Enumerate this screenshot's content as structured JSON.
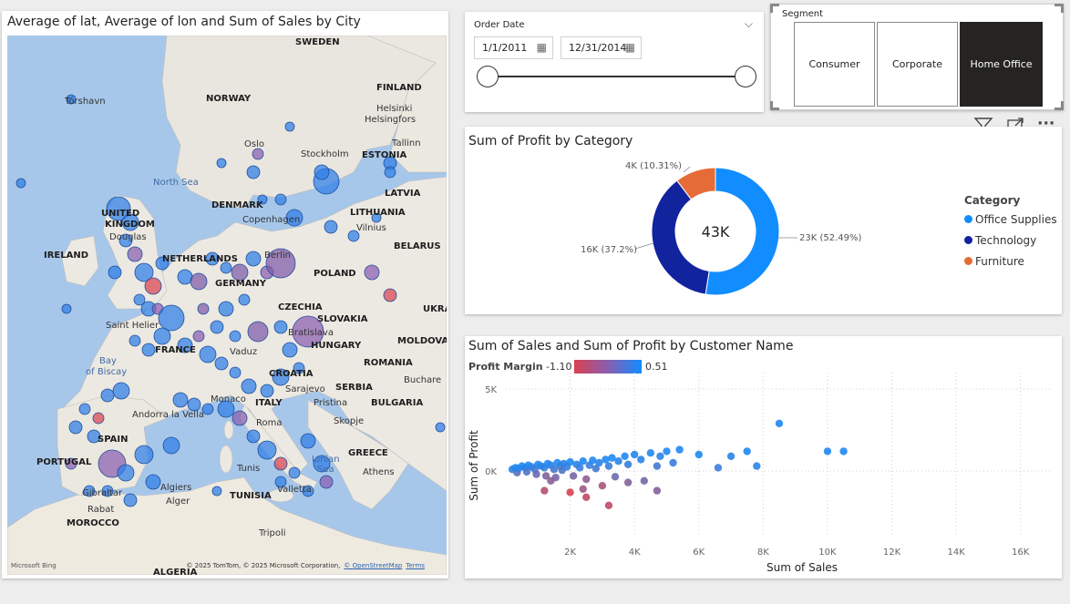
{
  "map": {
    "title": "Average of lat, Average of lon and Sum of Sales by City",
    "attribution": "© 2025 TomTom, © 2025 Microsoft Corporation,",
    "attribution_link": "© OpenStreetMap",
    "terms": "Terms",
    "logo": "Microsoft Bing",
    "labels": [
      {
        "name": "sweden",
        "text": "SWEDEN",
        "kind": "country"
      },
      {
        "name": "norway",
        "text": "NORWAY",
        "kind": "country"
      },
      {
        "name": "finland",
        "text": "FINLAND",
        "kind": "country"
      },
      {
        "name": "estonia",
        "text": "ESTONIA",
        "kind": "country"
      },
      {
        "name": "latvia",
        "text": "LATVIA",
        "kind": "country"
      },
      {
        "name": "lithuania",
        "text": "LITHUANIA",
        "kind": "country"
      },
      {
        "name": "denmark",
        "text": "DENMARK",
        "kind": "country"
      },
      {
        "name": "united-kingdom-1",
        "text": "UNITED",
        "kind": "country"
      },
      {
        "name": "united-kingdom-2",
        "text": "KINGDOM",
        "kind": "country"
      },
      {
        "name": "ireland",
        "text": "IRELAND",
        "kind": "country"
      },
      {
        "name": "netherlands",
        "text": "NETHERLANDS",
        "kind": "country"
      },
      {
        "name": "germany",
        "text": "GERMANY",
        "kind": "country"
      },
      {
        "name": "belarus",
        "text": "BELARUS",
        "kind": "country"
      },
      {
        "name": "poland",
        "text": "POLAND",
        "kind": "country"
      },
      {
        "name": "czechia",
        "text": "CZECHIA",
        "kind": "country"
      },
      {
        "name": "slovakia",
        "text": "SLOVAKIA",
        "kind": "country"
      },
      {
        "name": "ukraine",
        "text": "UKRA",
        "kind": "country"
      },
      {
        "name": "moldova",
        "text": "MOLDOVA",
        "kind": "country"
      },
      {
        "name": "hungary",
        "text": "HUNGARY",
        "kind": "country"
      },
      {
        "name": "france",
        "text": "FRANCE",
        "kind": "country"
      },
      {
        "name": "romania",
        "text": "ROMANIA",
        "kind": "country"
      },
      {
        "name": "croatia",
        "text": "CROATIA",
        "kind": "country"
      },
      {
        "name": "serbia",
        "text": "SERBIA",
        "kind": "country"
      },
      {
        "name": "bulgaria",
        "text": "BULGARIA",
        "kind": "country"
      },
      {
        "name": "italy",
        "text": "ITALY",
        "kind": "country"
      },
      {
        "name": "spain",
        "text": "SPAIN",
        "kind": "country"
      },
      {
        "name": "portugal",
        "text": "PORTUGAL",
        "kind": "country"
      },
      {
        "name": "greece",
        "text": "GREECE",
        "kind": "country"
      },
      {
        "name": "tunisia",
        "text": "TUNISIA",
        "kind": "country"
      },
      {
        "name": "morocco",
        "text": "MOROCCO",
        "kind": "country"
      },
      {
        "name": "algeria",
        "text": "ALGERIA",
        "kind": "country"
      },
      {
        "name": "torshavn",
        "text": "Tórshavn",
        "kind": "city"
      },
      {
        "name": "helsinki-1",
        "text": "Helsinki",
        "kind": "city"
      },
      {
        "name": "helsinki-2",
        "text": "Helsingfors",
        "kind": "city"
      },
      {
        "name": "oslo",
        "text": "Oslo",
        "kind": "city"
      },
      {
        "name": "stockholm",
        "text": "Stockholm",
        "kind": "city"
      },
      {
        "name": "tallinn",
        "text": "Tallinn",
        "kind": "city"
      },
      {
        "name": "copenhagen",
        "text": "Copenhagen",
        "kind": "city"
      },
      {
        "name": "vilnius",
        "text": "Vilnius",
        "kind": "city"
      },
      {
        "name": "berlin",
        "text": "Berlin",
        "kind": "city"
      },
      {
        "name": "douglas",
        "text": "Douglas",
        "kind": "city"
      },
      {
        "name": "saint-helier",
        "text": "Saint Helier",
        "kind": "city"
      },
      {
        "name": "vaduz",
        "text": "Vaduz",
        "kind": "city"
      },
      {
        "name": "sarajevo",
        "text": "Sarajevo",
        "kind": "city"
      },
      {
        "name": "pristina",
        "text": "Pristina",
        "kind": "city"
      },
      {
        "name": "skopje",
        "text": "Skopje",
        "kind": "city"
      },
      {
        "name": "bucharest",
        "text": "Buchare",
        "kind": "city"
      },
      {
        "name": "monaco",
        "text": "Monaco",
        "kind": "city"
      },
      {
        "name": "andorra",
        "text": "Andorra la Vella",
        "kind": "city"
      },
      {
        "name": "roma",
        "text": "Roma",
        "kind": "city"
      },
      {
        "name": "tunis",
        "text": "Tunis",
        "kind": "city"
      },
      {
        "name": "valletta",
        "text": "Valletta",
        "kind": "city"
      },
      {
        "name": "athens",
        "text": "Athens",
        "kind": "city"
      },
      {
        "name": "algiers-1",
        "text": "Algiers",
        "kind": "city"
      },
      {
        "name": "algiers-2",
        "text": "Alger",
        "kind": "city"
      },
      {
        "name": "rabat",
        "text": "Rabat",
        "kind": "city"
      },
      {
        "name": "gibraltar",
        "text": "Gibraltar",
        "kind": "city"
      },
      {
        "name": "tripoli",
        "text": "Tripoli",
        "kind": "city"
      },
      {
        "name": "bratislava",
        "text": "Bratislava",
        "kind": "city"
      },
      {
        "name": "north-sea",
        "text": "North Sea",
        "kind": "sea"
      },
      {
        "name": "bay-of-biscay-1",
        "text": "Bay",
        "kind": "sea"
      },
      {
        "name": "bay-of-biscay-2",
        "text": "of Biscay",
        "kind": "sea"
      },
      {
        "name": "ionian-sea-1",
        "text": "Ionian",
        "kind": "sea"
      },
      {
        "name": "ionian-sea-2",
        "text": "Sea",
        "kind": "sea"
      }
    ]
  },
  "order_date": {
    "title": "Order Date",
    "start": "1/1/2011",
    "end": "12/31/2014"
  },
  "segment": {
    "title": "Segment",
    "options": [
      "Consumer",
      "Corporate",
      "Home Office"
    ],
    "selected": "Home Office"
  },
  "visual_header": {
    "icons": [
      "filter-icon",
      "focus-mode-icon",
      "more-options-icon"
    ],
    "more_glyph": "···"
  },
  "chart_data": [
    {
      "type": "pie",
      "subtype": "donut",
      "title": "Sum of Profit by Category",
      "center_label": "43K",
      "legend_title": "Category",
      "legend_position": "right",
      "slices": [
        {
          "name": "Office Supplies",
          "value": 52.49,
          "data_label": "23K (52.49%)",
          "color": "#118dff"
        },
        {
          "name": "Technology",
          "value": 37.2,
          "data_label": "16K (37.2%)",
          "color": "#12239e"
        },
        {
          "name": "Furniture",
          "value": 10.31,
          "data_label": "4K (10.31%)",
          "color": "#e66c37"
        }
      ]
    },
    {
      "type": "scatter",
      "title": "Sum of Sales and Sum of Profit by Customer Name",
      "xlabel": "Sum of Sales",
      "ylabel": "Sum of Profit",
      "xlim": [
        0,
        17000
      ],
      "ylim": [
        -4000,
        6000
      ],
      "x_ticks": [
        {
          "value": 2000,
          "label": "2K"
        },
        {
          "value": 4000,
          "label": "4K"
        },
        {
          "value": 6000,
          "label": "6K"
        },
        {
          "value": 8000,
          "label": "8K"
        },
        {
          "value": 10000,
          "label": "10K"
        },
        {
          "value": 12000,
          "label": "12K"
        },
        {
          "value": 14000,
          "label": "14K"
        },
        {
          "value": 16000,
          "label": "16K"
        }
      ],
      "y_ticks": [
        {
          "value": 0,
          "label": "0K"
        },
        {
          "value": 5000,
          "label": "5K"
        }
      ],
      "grid": true,
      "color_legend": {
        "title": "Profit Margin",
        "min_label": "-1.10",
        "max_label": "0.51",
        "min_color": "#d9424f",
        "max_color": "#118dff"
      },
      "points": [
        {
          "x": 200,
          "y": 100,
          "m": 0.3
        },
        {
          "x": 300,
          "y": 200,
          "m": 0.4
        },
        {
          "x": 350,
          "y": -100,
          "m": -0.1
        },
        {
          "x": 400,
          "y": 150,
          "m": 0.3
        },
        {
          "x": 500,
          "y": 300,
          "m": 0.4
        },
        {
          "x": 600,
          "y": 200,
          "m": 0.3
        },
        {
          "x": 650,
          "y": -50,
          "m": 0.0
        },
        {
          "x": 700,
          "y": 350,
          "m": 0.4
        },
        {
          "x": 800,
          "y": 250,
          "m": 0.3
        },
        {
          "x": 900,
          "y": 100,
          "m": 0.1
        },
        {
          "x": 950,
          "y": -200,
          "m": -0.2
        },
        {
          "x": 1000,
          "y": 400,
          "m": 0.4
        },
        {
          "x": 1100,
          "y": 300,
          "m": 0.3
        },
        {
          "x": 1200,
          "y": 200,
          "m": 0.2
        },
        {
          "x": 1250,
          "y": -300,
          "m": -0.4
        },
        {
          "x": 1300,
          "y": 450,
          "m": 0.4
        },
        {
          "x": 1400,
          "y": 350,
          "m": 0.3
        },
        {
          "x": 1500,
          "y": 100,
          "m": 0.1
        },
        {
          "x": 1550,
          "y": -400,
          "m": -0.3
        },
        {
          "x": 1600,
          "y": 500,
          "m": 0.4
        },
        {
          "x": 1700,
          "y": 300,
          "m": 0.2
        },
        {
          "x": 1750,
          "y": 50,
          "m": 0.0
        },
        {
          "x": 1800,
          "y": 450,
          "m": 0.3
        },
        {
          "x": 1900,
          "y": 250,
          "m": 0.2
        },
        {
          "x": 2000,
          "y": 550,
          "m": 0.4
        },
        {
          "x": 2100,
          "y": -300,
          "m": -0.3
        },
        {
          "x": 2200,
          "y": 400,
          "m": 0.3
        },
        {
          "x": 2300,
          "y": 200,
          "m": 0.2
        },
        {
          "x": 2400,
          "y": 600,
          "m": 0.4
        },
        {
          "x": 2500,
          "y": -500,
          "m": -0.5
        },
        {
          "x": 2600,
          "y": 350,
          "m": 0.2
        },
        {
          "x": 2700,
          "y": 650,
          "m": 0.4
        },
        {
          "x": 2800,
          "y": 150,
          "m": 0.1
        },
        {
          "x": 2900,
          "y": 500,
          "m": 0.3
        },
        {
          "x": 3000,
          "y": -900,
          "m": -0.7
        },
        {
          "x": 3100,
          "y": 700,
          "m": 0.4
        },
        {
          "x": 3200,
          "y": 300,
          "m": 0.2
        },
        {
          "x": 3300,
          "y": 800,
          "m": 0.4
        },
        {
          "x": 3400,
          "y": -350,
          "m": -0.2
        },
        {
          "x": 3500,
          "y": 600,
          "m": 0.3
        },
        {
          "x": 3700,
          "y": 900,
          "m": 0.4
        },
        {
          "x": 3800,
          "y": 400,
          "m": 0.2
        },
        {
          "x": 4000,
          "y": 1000,
          "m": 0.4
        },
        {
          "x": 4200,
          "y": 700,
          "m": 0.3
        },
        {
          "x": 4300,
          "y": -600,
          "m": -0.3
        },
        {
          "x": 4500,
          "y": 1100,
          "m": 0.4
        },
        {
          "x": 4700,
          "y": 300,
          "m": 0.1
        },
        {
          "x": 4800,
          "y": 900,
          "m": 0.3
        },
        {
          "x": 5000,
          "y": 1200,
          "m": 0.4
        },
        {
          "x": 5200,
          "y": 500,
          "m": 0.2
        },
        {
          "x": 5400,
          "y": 1300,
          "m": 0.4
        },
        {
          "x": 1200,
          "y": -1200,
          "m": -0.8
        },
        {
          "x": 2000,
          "y": -1300,
          "m": -1.1
        },
        {
          "x": 2400,
          "y": -1100,
          "m": -0.6
        },
        {
          "x": 3200,
          "y": -2100,
          "m": -0.9
        },
        {
          "x": 3800,
          "y": -700,
          "m": -0.4
        },
        {
          "x": 4700,
          "y": -1200,
          "m": -0.4
        },
        {
          "x": 2500,
          "y": -1600,
          "m": -0.9
        },
        {
          "x": 1400,
          "y": -600,
          "m": -0.5
        },
        {
          "x": 6000,
          "y": 1000,
          "m": 0.4
        },
        {
          "x": 6600,
          "y": 200,
          "m": 0.2
        },
        {
          "x": 7000,
          "y": 900,
          "m": 0.3
        },
        {
          "x": 7500,
          "y": 1200,
          "m": 0.4
        },
        {
          "x": 7800,
          "y": 300,
          "m": 0.3
        },
        {
          "x": 8500,
          "y": 2900,
          "m": 0.4
        },
        {
          "x": 10000,
          "y": 1200,
          "m": 0.4
        },
        {
          "x": 10500,
          "y": 1200,
          "m": 0.4
        }
      ]
    }
  ]
}
